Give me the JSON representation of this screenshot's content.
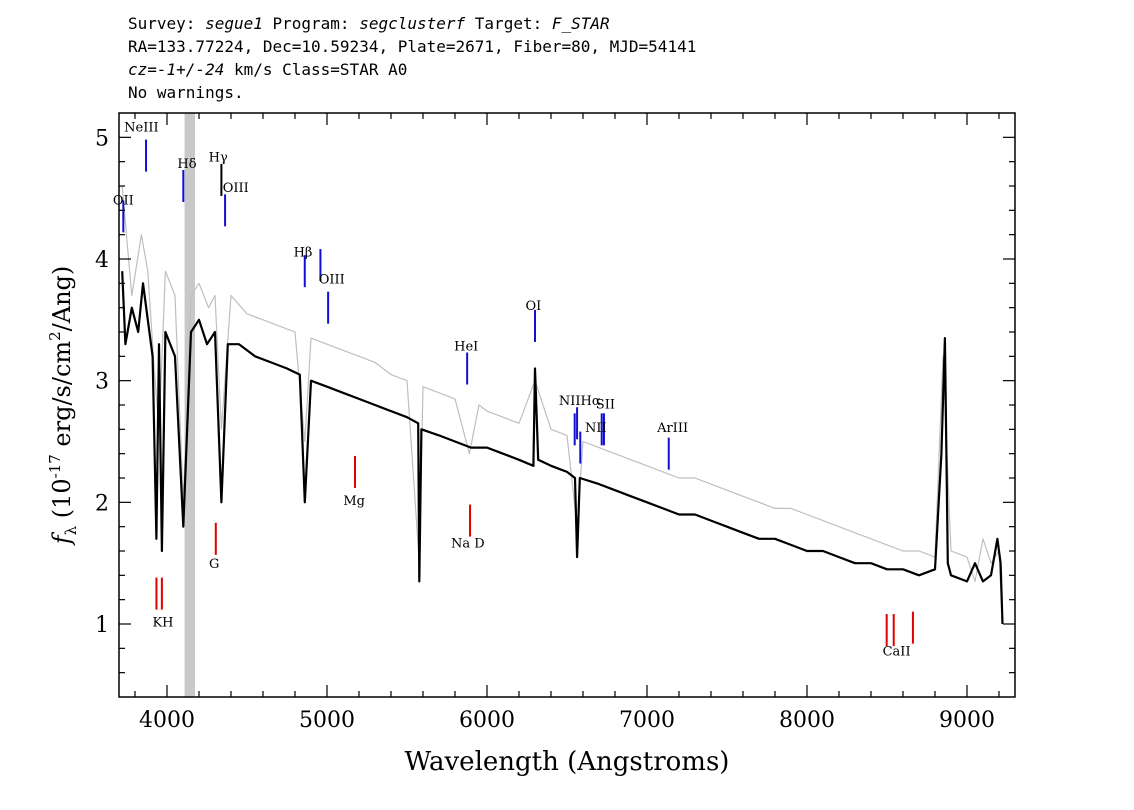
{
  "header": {
    "survey_label": "Survey: ",
    "survey": "segue1",
    "program_label": " Program: ",
    "program": "segclusterf",
    "target_label": " Target: ",
    "target": "F_STAR",
    "coords": "RA=133.77224, Dec=10.59234, Plate=2671, Fiber=80, MJD=54141",
    "cz": "cz=-1+/-24",
    "cz_rest": " km/s Class=STAR A0",
    "warnings": "No warnings."
  },
  "chart_data": {
    "type": "line",
    "xlabel": "Wavelength (Angstroms)",
    "ylabel": "f_λ (10^-17 erg/s/cm^2/Ang)",
    "xlim": [
      3700,
      9300
    ],
    "ylim": [
      0.4,
      5.2
    ],
    "x_ticks": [
      4000,
      5000,
      6000,
      7000,
      8000,
      9000
    ],
    "y_ticks": [
      1,
      2,
      3,
      4,
      5
    ],
    "masked_band": [
      4110,
      4175
    ],
    "series": [
      {
        "role": "flux",
        "color": "#bfbfbf",
        "x": [
          3720,
          3780,
          3840,
          3880,
          3920,
          3950,
          3990,
          4050,
          4102,
          4150,
          4200,
          4260,
          4300,
          4340,
          4400,
          4500,
          4600,
          4700,
          4800,
          4861,
          4900,
          5000,
          5100,
          5200,
          5300,
          5400,
          5500,
          5577,
          5600,
          5700,
          5800,
          5890,
          5950,
          6000,
          6100,
          6200,
          6300,
          6400,
          6500,
          6563,
          6600,
          6700,
          6800,
          6900,
          7000,
          7100,
          7200,
          7300,
          7400,
          7500,
          7600,
          7700,
          7800,
          7900,
          8000,
          8100,
          8200,
          8300,
          8400,
          8500,
          8600,
          8700,
          8800,
          8850,
          8900,
          9000,
          9050,
          9100,
          9150,
          9200,
          9220
        ],
        "y": [
          4.6,
          3.7,
          4.2,
          3.9,
          3.1,
          2.6,
          3.9,
          3.7,
          2.0,
          3.7,
          3.8,
          3.6,
          3.7,
          2.6,
          3.7,
          3.55,
          3.5,
          3.45,
          3.4,
          2.5,
          3.35,
          3.3,
          3.25,
          3.2,
          3.15,
          3.05,
          3.0,
          1.5,
          2.95,
          2.9,
          2.85,
          2.4,
          2.8,
          2.75,
          2.7,
          2.65,
          3.0,
          2.6,
          2.55,
          1.8,
          2.5,
          2.45,
          2.4,
          2.35,
          2.3,
          2.25,
          2.2,
          2.2,
          2.15,
          2.1,
          2.05,
          2.0,
          1.95,
          1.95,
          1.9,
          1.85,
          1.8,
          1.75,
          1.7,
          1.65,
          1.6,
          1.6,
          1.55,
          3.2,
          1.6,
          1.55,
          1.35,
          1.7,
          1.5,
          1.6,
          1.0
        ]
      },
      {
        "role": "best_fit",
        "color": "#000000",
        "x": [
          3720,
          3740,
          3780,
          3820,
          3850,
          3880,
          3910,
          3934,
          3950,
          3968,
          3990,
          4050,
          4102,
          4150,
          4200,
          4250,
          4300,
          4340,
          4380,
          4450,
          4550,
          4650,
          4750,
          4830,
          4861,
          4900,
          5000,
          5100,
          5200,
          5300,
          5400,
          5500,
          5570,
          5577,
          5590,
          5700,
          5800,
          5900,
          6000,
          6100,
          6200,
          6290,
          6300,
          6320,
          6400,
          6500,
          6550,
          6563,
          6580,
          6700,
          6800,
          6900,
          7000,
          7100,
          7200,
          7300,
          7400,
          7500,
          7600,
          7700,
          7800,
          7900,
          8000,
          8100,
          8200,
          8300,
          8400,
          8500,
          8600,
          8700,
          8800,
          8840,
          8862,
          8880,
          8900,
          9000,
          9050,
          9100,
          9150,
          9190,
          9210,
          9222
        ],
        "y": [
          3.9,
          3.3,
          3.6,
          3.4,
          3.8,
          3.5,
          3.2,
          1.7,
          3.3,
          1.6,
          3.4,
          3.2,
          1.8,
          3.4,
          3.5,
          3.3,
          3.4,
          2.0,
          3.3,
          3.3,
          3.2,
          3.15,
          3.1,
          3.05,
          2.0,
          3.0,
          2.95,
          2.9,
          2.85,
          2.8,
          2.75,
          2.7,
          2.65,
          1.35,
          2.6,
          2.55,
          2.5,
          2.45,
          2.45,
          2.4,
          2.35,
          2.3,
          3.1,
          2.35,
          2.3,
          2.25,
          2.2,
          1.55,
          2.2,
          2.15,
          2.1,
          2.05,
          2.0,
          1.95,
          1.9,
          1.9,
          1.85,
          1.8,
          1.75,
          1.7,
          1.7,
          1.65,
          1.6,
          1.6,
          1.55,
          1.5,
          1.5,
          1.45,
          1.45,
          1.4,
          1.45,
          2.4,
          3.35,
          1.5,
          1.4,
          1.35,
          1.5,
          1.35,
          1.4,
          1.7,
          1.5,
          1.0
        ]
      }
    ],
    "line_markers": [
      {
        "label": "OII",
        "x": 3727,
        "y": 4.35,
        "color": "blue"
      },
      {
        "label": "NeIII",
        "x": 3869,
        "y": 4.85,
        "color": "blue"
      },
      {
        "label": "Hδ",
        "x": 4102,
        "y": 4.6,
        "color": "blue"
      },
      {
        "label": "Hγ",
        "x": 4340,
        "y": 4.65,
        "color": "black"
      },
      {
        "label": "OIII",
        "x": 4363,
        "y": 4.4,
        "color": "blue"
      },
      {
        "label": "Hβ",
        "x": 4861,
        "y": 3.9,
        "color": "blue"
      },
      {
        "label": "OIII",
        "x": 4959,
        "y": 3.95,
        "color": "blue"
      },
      {
        "label": "OIII",
        "x": 5007,
        "y": 3.6,
        "color": "blue"
      },
      {
        "label": "HeI",
        "x": 5876,
        "y": 3.1,
        "color": "blue"
      },
      {
        "label": "OI",
        "x": 6300,
        "y": 3.45,
        "color": "blue"
      },
      {
        "label": "NII",
        "x": 6548,
        "y": 2.6,
        "color": "blue"
      },
      {
        "label": "Hα",
        "x": 6563,
        "y": 2.65,
        "color": "blue"
      },
      {
        "label": "NII",
        "x": 6583,
        "y": 2.45,
        "color": "blue"
      },
      {
        "label": "SII",
        "x": 6717,
        "y": 2.6,
        "color": "blue"
      },
      {
        "label": "SII",
        "x": 6731,
        "y": 2.6,
        "color": "blue"
      },
      {
        "label": "ArIII",
        "x": 7136,
        "y": 2.4,
        "color": "blue"
      },
      {
        "label": "K",
        "x": 3934,
        "y": 1.25,
        "color": "red"
      },
      {
        "label": "H",
        "x": 3968,
        "y": 1.25,
        "color": "red"
      },
      {
        "label": "G",
        "x": 4305,
        "y": 1.7,
        "color": "red"
      },
      {
        "label": "Mg",
        "x": 5175,
        "y": 2.25,
        "color": "red"
      },
      {
        "label": "Na D",
        "x": 5894,
        "y": 1.85,
        "color": "red"
      },
      {
        "label": "CaII",
        "x": 8498,
        "y": 0.95,
        "color": "red"
      },
      {
        "label": "CaII",
        "x": 8542,
        "y": 0.95,
        "color": "red"
      },
      {
        "label": "CaII",
        "x": 8662,
        "y": 0.97,
        "color": "red"
      }
    ],
    "line_labels": [
      {
        "text": "OII",
        "x": 3727,
        "y": 4.45
      },
      {
        "text": "NeIII",
        "x": 3840,
        "y": 5.05
      },
      {
        "text": "Hδ",
        "x": 4125,
        "y": 4.75
      },
      {
        "text": "Hγ",
        "x": 4320,
        "y": 4.8
      },
      {
        "text": "OIII",
        "x": 4430,
        "y": 4.55
      },
      {
        "text": "Hβ",
        "x": 4850,
        "y": 4.02
      },
      {
        "text": "OIII",
        "x": 5030,
        "y": 3.8
      },
      {
        "text": "HeI",
        "x": 5870,
        "y": 3.25
      },
      {
        "text": "OI",
        "x": 6290,
        "y": 3.58
      },
      {
        "text": "NIIHα",
        "x": 6580,
        "y": 2.8
      },
      {
        "text": "SII",
        "x": 6740,
        "y": 2.77
      },
      {
        "text": "NII",
        "x": 6680,
        "y": 2.58
      },
      {
        "text": "ArIII",
        "x": 7160,
        "y": 2.58
      },
      {
        "text": "KH",
        "x": 3975,
        "y": 0.98
      },
      {
        "text": "G",
        "x": 4295,
        "y": 1.46
      },
      {
        "text": "Mg",
        "x": 5170,
        "y": 1.98
      },
      {
        "text": "Na D",
        "x": 5880,
        "y": 1.63
      },
      {
        "text": "CaII",
        "x": 8560,
        "y": 0.74
      }
    ]
  }
}
